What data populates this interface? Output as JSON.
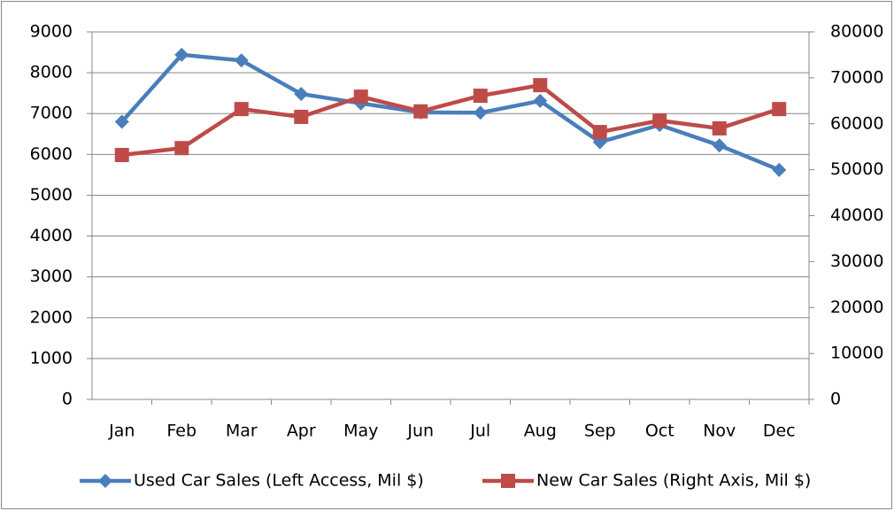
{
  "chart_data": {
    "type": "line",
    "categories": [
      "Jan",
      "Feb",
      "Mar",
      "Apr",
      "May",
      "Jun",
      "Jul",
      "Aug",
      "Sep",
      "Oct",
      "Nov",
      "Dec"
    ],
    "series": [
      {
        "name": "Used Car Sales (Left Access, Mil $)",
        "color": "#4a7ebb",
        "marker": "diamond",
        "values": [
          6800,
          8440,
          8300,
          7480,
          7250,
          7030,
          7020,
          7310,
          6300,
          6720,
          6220,
          5620
        ]
      },
      {
        "name": "New Car Sales (Right Axis, Mil $)",
        "color": "#be4b48",
        "marker": "square",
        "axis": "y2",
        "values": [
          53200,
          54700,
          63200,
          61500,
          65900,
          62700,
          66100,
          68400,
          58200,
          60700,
          59000,
          63200
        ]
      }
    ],
    "ylim": [
      0,
      9000
    ],
    "yticks": [
      0,
      1000,
      2000,
      3000,
      4000,
      5000,
      6000,
      7000,
      8000,
      9000
    ],
    "y2lim": [
      0,
      80000
    ],
    "y2ticks": [
      0,
      10000,
      20000,
      30000,
      40000,
      50000,
      60000,
      70000,
      80000
    ],
    "grid": true,
    "legend": "bottom"
  }
}
